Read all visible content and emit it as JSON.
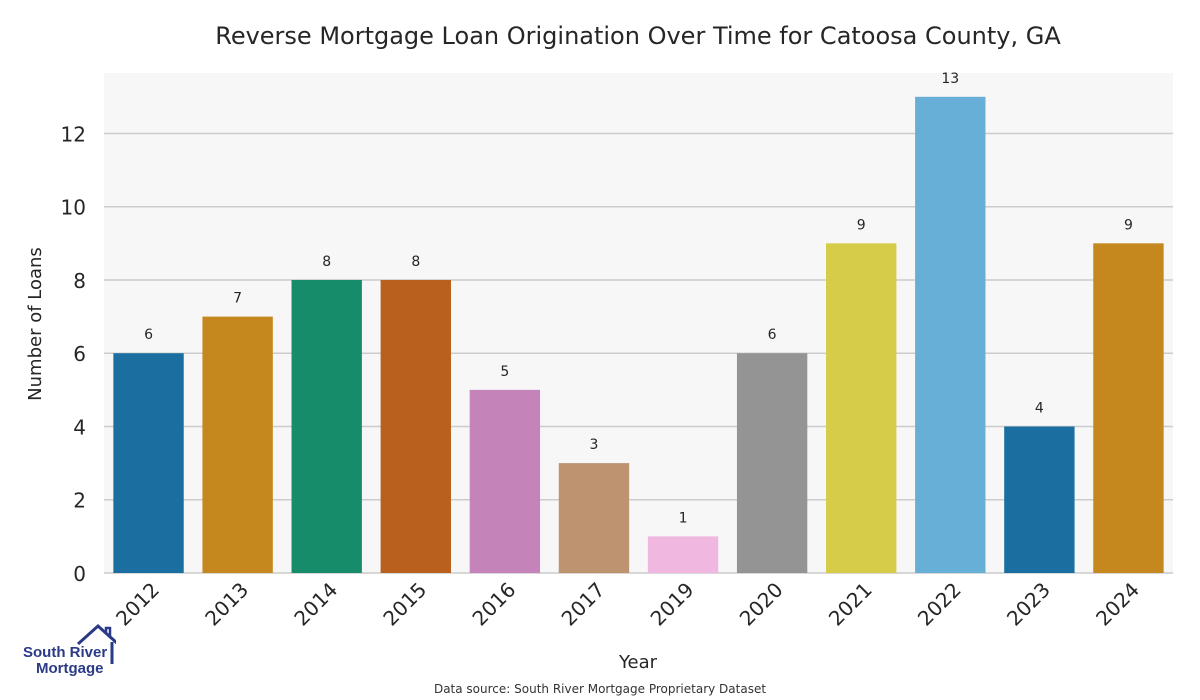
{
  "chart_data": {
    "type": "bar",
    "title": "Reverse Mortgage Loan Origination Over Time for Catoosa County, GA",
    "xlabel": "Year",
    "ylabel": "Number of Loans",
    "categories": [
      "2012",
      "2013",
      "2014",
      "2015",
      "2016",
      "2017",
      "2019",
      "2020",
      "2021",
      "2022",
      "2023",
      "2024"
    ],
    "values": [
      6,
      7,
      8,
      8,
      5,
      3,
      1,
      6,
      9,
      13,
      4,
      9
    ],
    "data_labels": [
      "6",
      "7",
      "8",
      "8",
      "5",
      "3",
      "1",
      "6",
      "9",
      "13",
      "4",
      "9"
    ],
    "colors": [
      "#1a6fa0",
      "#c4881f",
      "#168c6a",
      "#b9601e",
      "#c584b9",
      "#bd9370",
      "#f0b8e0",
      "#949494",
      "#d6cc48",
      "#68afd7",
      "#1a6fa0",
      "#c4881f"
    ],
    "yticks": [
      "0",
      "2",
      "4",
      "6",
      "8",
      "10",
      "12"
    ],
    "ylim": [
      0,
      13.65
    ],
    "grid": true,
    "plot_background": "#f7f7f7",
    "grid_color": "#cccccc"
  },
  "logo": {
    "line1": "South River",
    "line2": "Mortgage",
    "color": "#2b3a86"
  },
  "footer": {
    "source": "Data source: South River Mortgage Proprietary Dataset"
  }
}
